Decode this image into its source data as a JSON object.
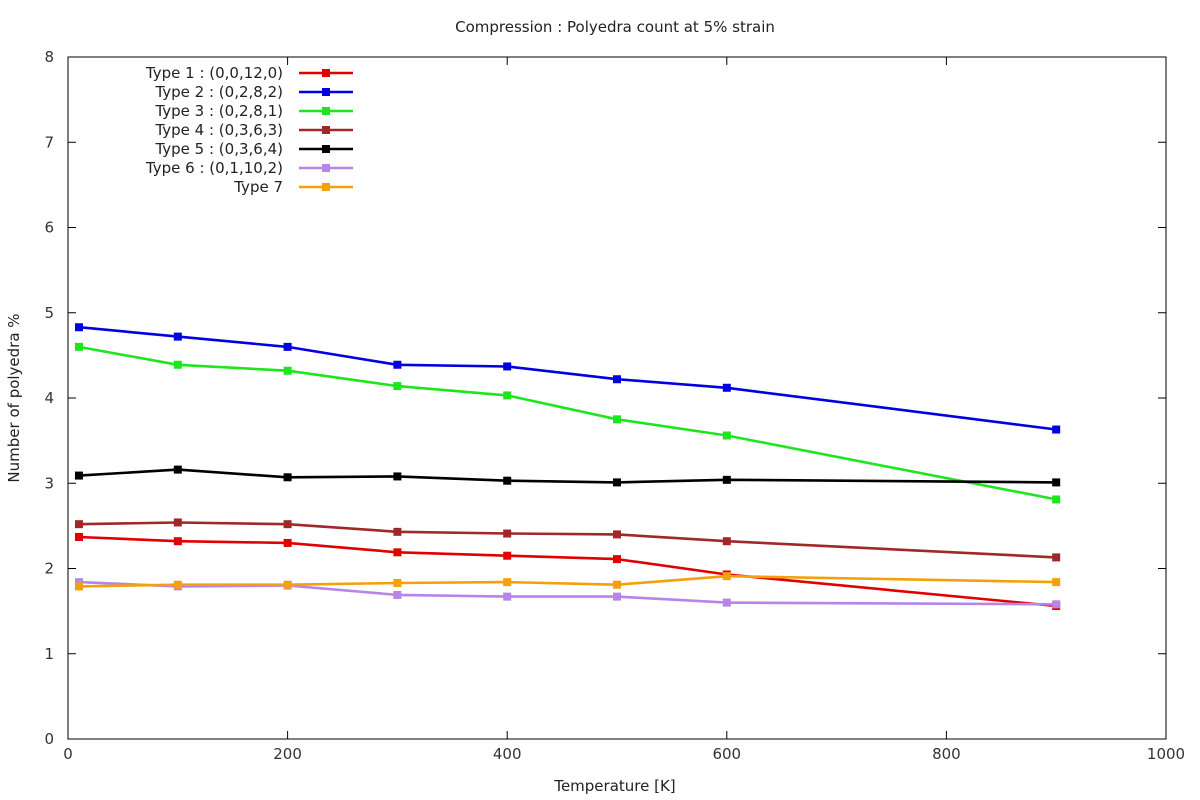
{
  "chart_data": {
    "type": "line",
    "title": "Compression : Polyedra count at 5% strain",
    "xlabel": "Temperature [K]",
    "ylabel": "Number of polyedra %",
    "xlim": [
      0,
      1000
    ],
    "ylim": [
      0,
      8
    ],
    "xticks": [
      0,
      200,
      400,
      600,
      800,
      1000
    ],
    "yticks": [
      0,
      1,
      2,
      3,
      4,
      5,
      6,
      7,
      8
    ],
    "grid": false,
    "legend_position": "top-left",
    "x": [
      10,
      100,
      200,
      300,
      400,
      500,
      600,
      900
    ],
    "series": [
      {
        "name": "Type 1 : (0,0,12,0)",
        "color": "#e00000",
        "marker": "square",
        "values": [
          2.37,
          2.32,
          2.3,
          2.19,
          2.15,
          2.11,
          1.93,
          1.56
        ]
      },
      {
        "name": "Type 2 : (0,2,8,2)",
        "color": "#0000e0",
        "marker": "square",
        "values": [
          4.83,
          4.72,
          4.6,
          4.39,
          4.37,
          4.22,
          4.12,
          3.63
        ]
      },
      {
        "name": "Type 3 : (0,2,8,1)",
        "color": "#1ee61e",
        "marker": "square",
        "values": [
          4.6,
          4.39,
          4.32,
          4.14,
          4.03,
          3.75,
          3.56,
          2.81
        ]
      },
      {
        "name": "Type 4 : (0,3,6,3)",
        "color": "#a02828",
        "marker": "square",
        "values": [
          2.52,
          2.54,
          2.52,
          2.43,
          2.41,
          2.4,
          2.32,
          2.13
        ]
      },
      {
        "name": "Type 5 : (0,3,6,4)",
        "color": "#000000",
        "marker": "square",
        "values": [
          3.09,
          3.16,
          3.07,
          3.08,
          3.03,
          3.01,
          3.04,
          3.01
        ]
      },
      {
        "name": "Type 6 : (0,1,10,2)",
        "color": "#b784e8",
        "marker": "square",
        "values": [
          1.84,
          1.79,
          1.8,
          1.69,
          1.67,
          1.67,
          1.6,
          1.58
        ]
      },
      {
        "name": "Type 7",
        "color": "#f3a00a",
        "marker": "square",
        "values": [
          1.79,
          1.81,
          1.81,
          1.83,
          1.84,
          1.81,
          1.91,
          1.84
        ]
      }
    ]
  }
}
